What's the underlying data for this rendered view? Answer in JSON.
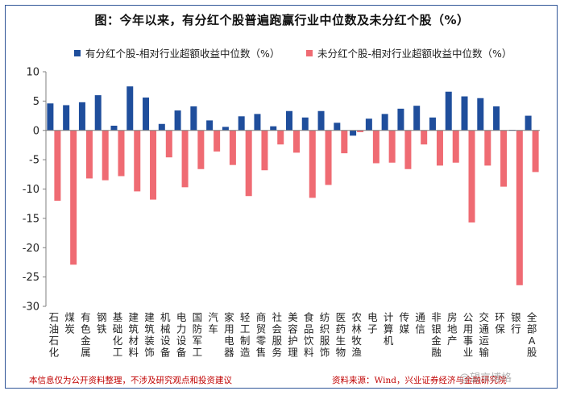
{
  "title": "图：今年以来，有分红个股普遍跑赢行业中位数及未分红个股（%）",
  "footnote_left": "本信息仅为公开资料整理，不涉及研究观点和投资建议",
  "footnote_right": "资料来源：Wind，兴业证券经济与金融研究院",
  "watermark": "@望京博格",
  "colors": {
    "frame": "#2f5597",
    "series1": "#1f4e9c",
    "series2": "#ef6b73",
    "footnote": "#c00000"
  },
  "chart_data": {
    "type": "bar",
    "title": "图：今年以来，有分红个股普遍跑赢行业中位数及未分红个股（%）",
    "xlabel": "",
    "ylabel": "",
    "ylim": [
      -30,
      10
    ],
    "yticks": [
      10,
      5,
      0,
      -5,
      -10,
      -15,
      -20,
      -25,
      -30
    ],
    "grid": false,
    "legend": "top",
    "categories": [
      "石油石化",
      "煤炭",
      "有色金属",
      "钢铁",
      "基础化工",
      "建筑材料",
      "建筑装饰",
      "机械设备",
      "电力设备",
      "国防军工",
      "汽车",
      "家用电器",
      "轻工制造",
      "商贸零售",
      "社会服务",
      "美容护理",
      "食品饮料",
      "纺织服饰",
      "医药生物",
      "农林牧渔",
      "电子",
      "计算机",
      "传媒",
      "通信",
      "非银金融",
      "房地产",
      "公用事业",
      "交通运输",
      "环保",
      "银行",
      "全部A股"
    ],
    "series": [
      {
        "name": "有分红个股-相对行业超额收益中位数（%）",
        "color": "#1f4e9c",
        "values": [
          4.6,
          4.3,
          4.8,
          6.0,
          0.8,
          7.5,
          5.6,
          1.1,
          3.4,
          4.1,
          1.7,
          0.6,
          2.4,
          2.8,
          0.7,
          3.3,
          2.2,
          3.3,
          1.3,
          -0.9,
          2.0,
          2.8,
          3.7,
          4.2,
          2.2,
          6.6,
          5.8,
          5.5,
          4.1,
          0.1,
          2.5
        ]
      },
      {
        "name": "未分红个股-相对行业超额收益中位数（%）",
        "color": "#ef6b73",
        "values": [
          -12.0,
          -22.9,
          -8.2,
          -8.5,
          -7.8,
          -10.4,
          -11.8,
          -4.6,
          -9.7,
          -6.6,
          -3.6,
          -5.9,
          -11.2,
          -6.8,
          -2.4,
          -3.8,
          -11.5,
          -9.3,
          -3.9,
          -0.3,
          -5.6,
          -5.5,
          -6.6,
          -2.4,
          -6.0,
          -5.5,
          -15.7,
          -6.0,
          -9.6,
          -26.4,
          -7.1
        ]
      }
    ]
  }
}
